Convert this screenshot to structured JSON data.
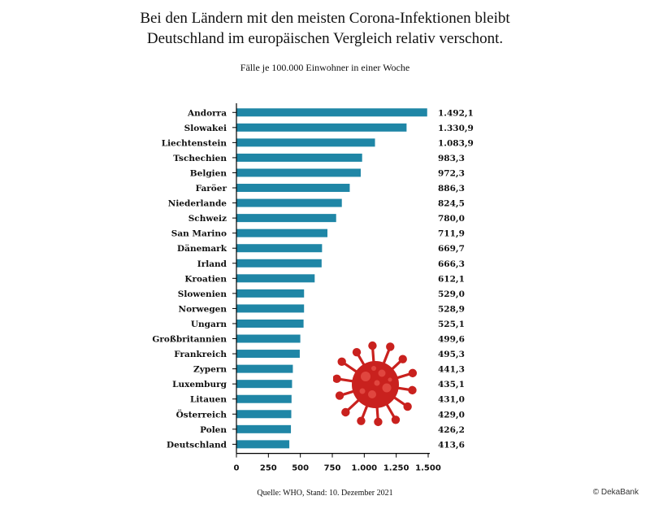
{
  "header": {
    "title_line1": "Bei den Ländern mit den meisten Corona-Infektionen bleibt",
    "title_line2": "Deutschland im europäischen Vergleich relativ verschont.",
    "subtitle": "Fälle je 100.000 Einwohner in einer Woche"
  },
  "footer": {
    "source": "Quelle: WHO,  Stand: 10. Dezember 2021",
    "copyright": "© DekaBank"
  },
  "colors": {
    "bar": "#1f86a6",
    "virus": "#c9211e",
    "axis": "#000000"
  },
  "icons": {
    "virus": "coronavirus-icon"
  },
  "chart_data": {
    "type": "bar",
    "orientation": "horizontal",
    "title": "Bei den Ländern mit den meisten Corona-Infektionen bleibt Deutschland im europäischen Vergleich relativ verschont.",
    "subtitle": "Fälle je 100.000 Einwohner in einer Woche",
    "categories": [
      "Andorra",
      "Slowakei",
      "Liechtenstein",
      "Tschechien",
      "Belgien",
      "Faröer",
      "Niederlande",
      "Schweiz",
      "San Marino",
      "Dänemark",
      "Irland",
      "Kroatien",
      "Slowenien",
      "Norwegen",
      "Ungarn",
      "Großbritannien",
      "Frankreich",
      "Zypern",
      "Luxemburg",
      "Litauen",
      "Österreich",
      "Polen",
      "Deutschland"
    ],
    "values": [
      1492.1,
      1330.9,
      1083.9,
      983.3,
      972.3,
      886.3,
      824.5,
      780.0,
      711.9,
      669.7,
      666.3,
      612.1,
      529.0,
      528.9,
      525.1,
      499.6,
      495.3,
      441.3,
      435.1,
      431.0,
      429.0,
      426.2,
      413.6
    ],
    "value_labels": [
      "1.492,1",
      "1.330,9",
      "1.083,9",
      "983,3",
      "972,3",
      "886,3",
      "824,5",
      "780,0",
      "711,9",
      "669,7",
      "666,3",
      "612,1",
      "529,0",
      "528,9",
      "525,1",
      "499,6",
      "495,3",
      "441,3",
      "435,1",
      "431,0",
      "429,0",
      "426,2",
      "413,6"
    ],
    "xlim": [
      0,
      1500
    ],
    "xticks": [
      0,
      250,
      500,
      750,
      1000,
      1250,
      1500
    ],
    "xtick_labels": [
      "0",
      "250",
      "500",
      "750",
      "1.000",
      "1.250",
      "1.500"
    ],
    "grid": false,
    "legend": "none"
  }
}
